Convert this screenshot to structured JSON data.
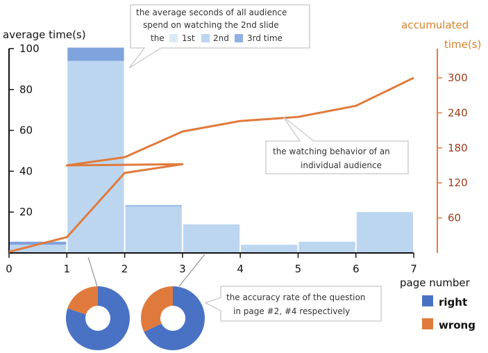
{
  "chart_data": {
    "type": "bar",
    "left_axis": {
      "label": "average time(s)",
      "range": [
        0,
        100
      ],
      "ticks": [
        0,
        20,
        40,
        60,
        80,
        100
      ]
    },
    "right_axis": {
      "label_line1": "accumulated",
      "label_line2": "time(s)",
      "range": [
        0,
        350
      ],
      "ticks": [
        60,
        120,
        180,
        240,
        300
      ]
    },
    "x_axis": {
      "label": "page number",
      "ticks": [
        0,
        1,
        2,
        3,
        4,
        5,
        6,
        7
      ]
    },
    "bars": [
      {
        "from": 0,
        "to": 1,
        "seg1": 4,
        "seg2": 0,
        "seg3": 1.5
      },
      {
        "from": 1,
        "to": 2,
        "seg1": 94,
        "seg2": 0,
        "seg3": 6.5
      },
      {
        "from": 2,
        "to": 3,
        "seg1": 22.5,
        "seg2": 1,
        "seg3": 0
      },
      {
        "from": 3,
        "to": 4,
        "seg1": 14,
        "seg2": 0,
        "seg3": 0
      },
      {
        "from": 4,
        "to": 5,
        "seg1": 4,
        "seg2": 0,
        "seg3": 0
      },
      {
        "from": 5,
        "to": 6,
        "seg1": 5.5,
        "seg2": 0,
        "seg3": 0
      },
      {
        "from": 6,
        "to": 7,
        "seg1": 20,
        "seg2": 0,
        "seg3": 0
      }
    ],
    "series_colors": {
      "seg1": "#bcd6f0",
      "seg2": "#a4c4ec",
      "seg3": "#7fa3dc"
    },
    "line": {
      "color": "#e07a3c",
      "points": [
        [
          0,
          2
        ],
        [
          1,
          27
        ],
        [
          2,
          137
        ],
        [
          3,
          152
        ],
        [
          1,
          150
        ],
        [
          2,
          164
        ],
        [
          3,
          208
        ],
        [
          4,
          226
        ],
        [
          5,
          233
        ],
        [
          6,
          252
        ],
        [
          7,
          300
        ]
      ]
    },
    "pies": [
      {
        "page": 2,
        "right": 0.8,
        "wrong": 0.2
      },
      {
        "page": 4,
        "right": 0.68,
        "wrong": 0.32
      }
    ],
    "callouts": {
      "top": {
        "line1": "the average seconds of all audience",
        "line2": "spend on watching the 2nd slide",
        "legend_prefix": "the",
        "legend_items": [
          "1st",
          "2nd",
          "3rd time"
        ]
      },
      "middle": {
        "line1": "the watching behavior of an",
        "line2": "individual audience"
      },
      "bottom": {
        "line1": "the accuracy rate of the question",
        "line2": "in page #2, #4 respectively"
      }
    },
    "legend": {
      "right_label": "right",
      "wrong_label": "wrong",
      "right_color": "#4a72c4",
      "wrong_color": "#e07a3c"
    }
  }
}
